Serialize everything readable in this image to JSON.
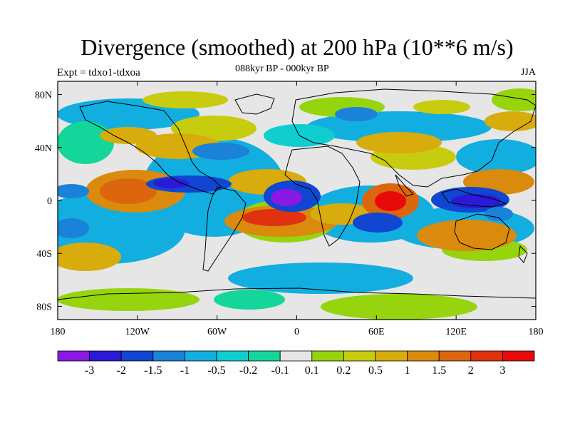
{
  "title": "Divergence (smoothed) at 200 hPa (10**6 m/s)",
  "subtitle": "088kyr BP - 000kyr BP",
  "left_label": "Expt = tdxo1-tdxoa",
  "right_label": "JJA",
  "map": {
    "lon_range": [
      -180,
      180
    ],
    "lat_range": [
      -90,
      90
    ],
    "background_color": "#e6e6e6",
    "lat_ticks": [
      "80N",
      "40N",
      "0",
      "40S",
      "80S"
    ],
    "lon_ticks": [
      "180",
      "120W",
      "60W",
      "0",
      "60E",
      "120E",
      "180"
    ]
  },
  "colorbar": {
    "colors": [
      "#8c18e6",
      "#2a1ad8",
      "#1046d2",
      "#1a82d8",
      "#12aee0",
      "#10cdd0",
      "#14d69a",
      "#e6e6e6",
      "#96d40e",
      "#c8cc0e",
      "#d8ac0c",
      "#da8a0c",
      "#dc660e",
      "#e0320e",
      "#e80a0a"
    ],
    "labels": [
      "-3",
      "-2",
      "-1.5",
      "-1",
      "-0.5",
      "-0.2",
      "-0.1",
      "0.1",
      "0.2",
      "0.5",
      "1",
      "1.5",
      "2",
      "3"
    ]
  }
}
